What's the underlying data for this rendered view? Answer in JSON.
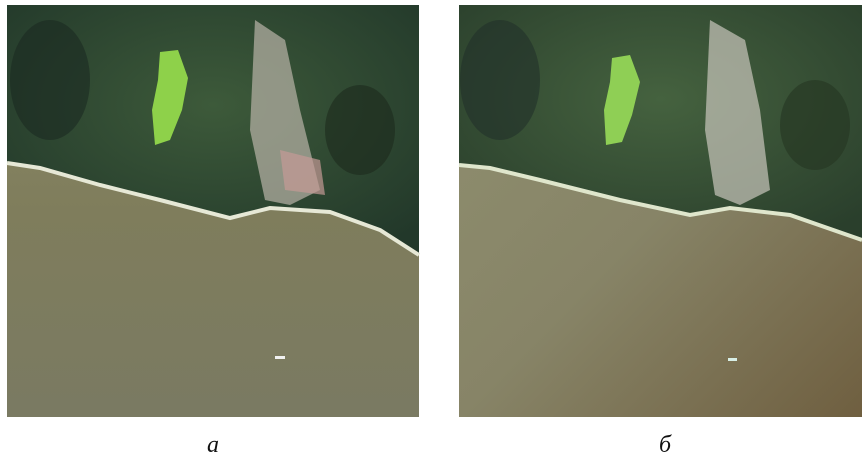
{
  "figure": {
    "panels": [
      {
        "caption": "а"
      },
      {
        "caption": "б"
      }
    ]
  }
}
